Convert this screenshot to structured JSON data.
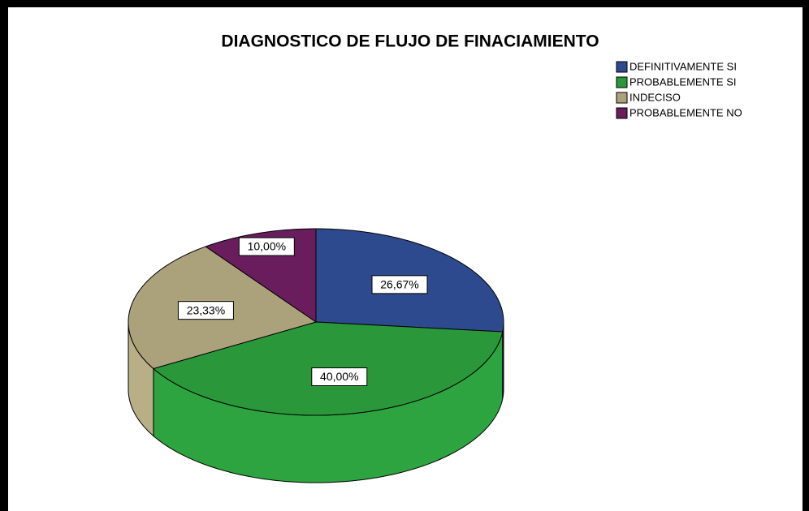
{
  "chart_data": {
    "type": "pie",
    "title": "DIAGNOSTICO DE FLUJO DE FINACIAMIENTO",
    "categories": [
      "DEFINITIVAMENTE SI",
      "PROBABLEMENTE SI",
      "INDECISO",
      "PROBABLEMENTE NO"
    ],
    "values": [
      26.67,
      40.0,
      23.33,
      10.0
    ],
    "value_labels": [
      "26,67%",
      "40,00%",
      "23,33%",
      "10,00%"
    ],
    "colors": [
      "#2e4a8e",
      "#2a983a",
      "#aba27c",
      "#6a1d5d"
    ]
  }
}
